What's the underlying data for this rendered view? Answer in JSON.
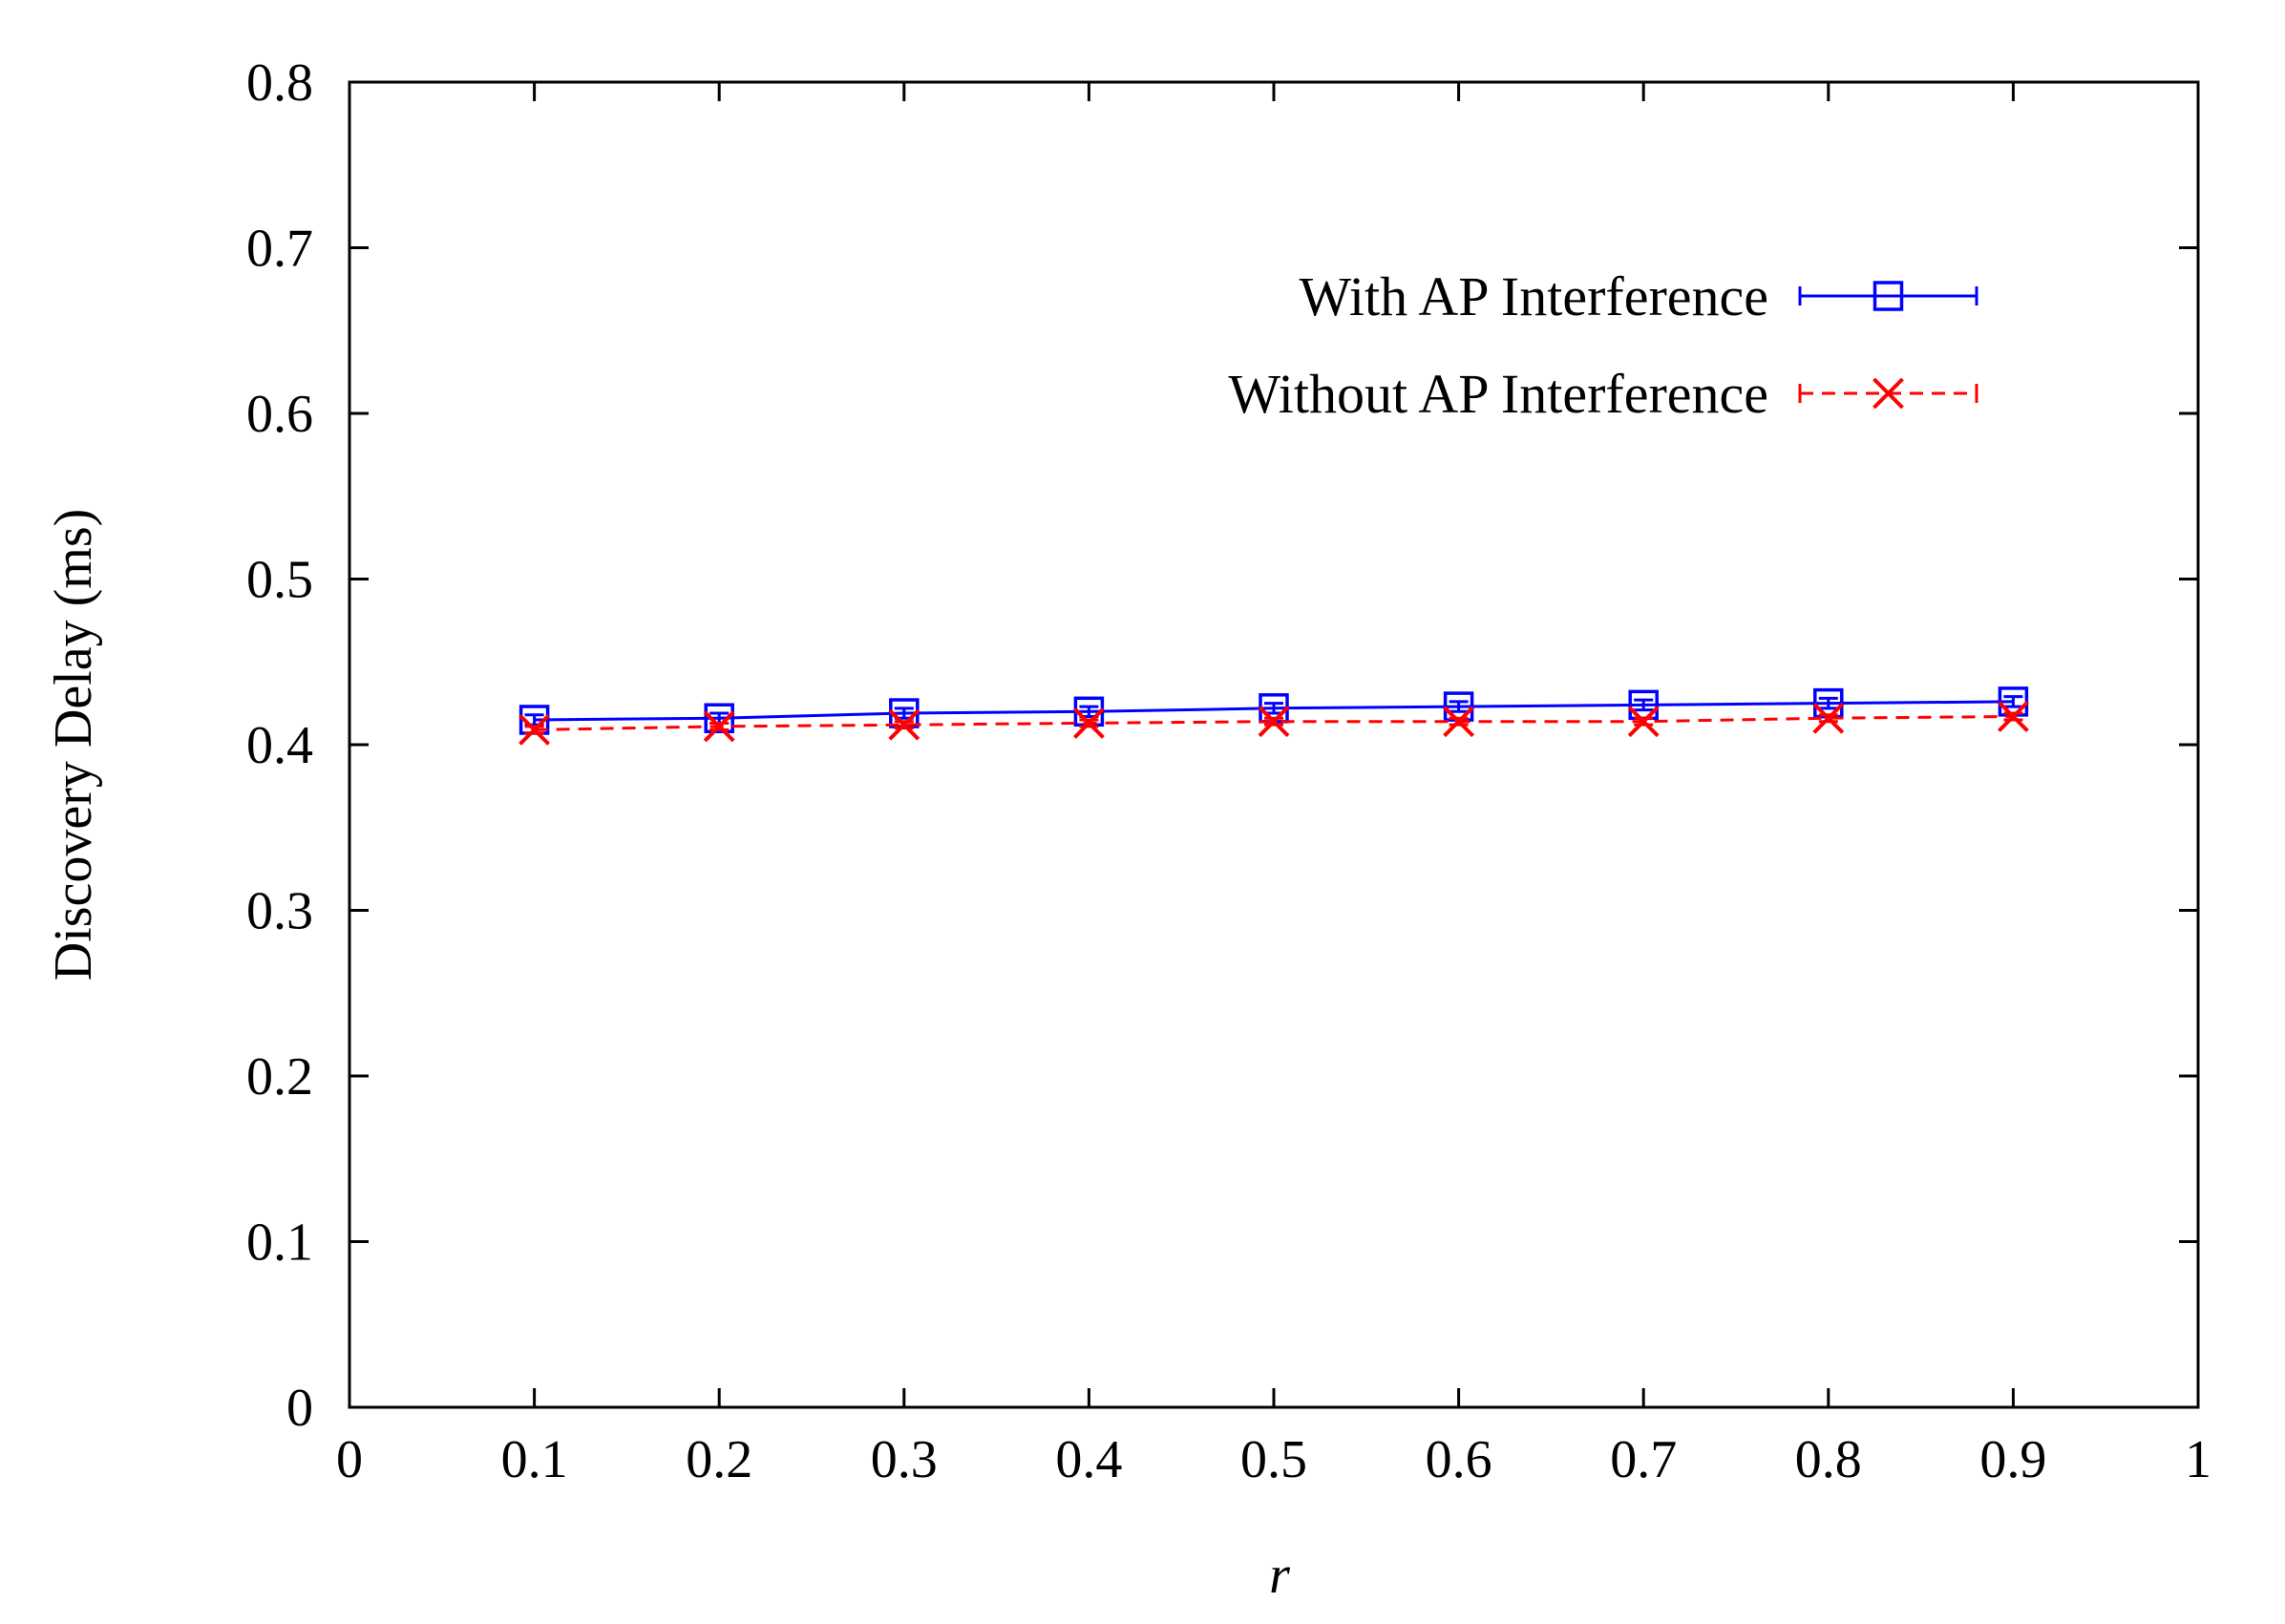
{
  "chart_data": {
    "type": "line",
    "title": "",
    "xlabel": "r",
    "ylabel": "Discovery Delay (ms)",
    "xlim": [
      0,
      1
    ],
    "ylim": [
      0,
      0.8
    ],
    "x_ticks": [
      0,
      0.1,
      0.2,
      0.3,
      0.4,
      0.5,
      0.6,
      0.7,
      0.8,
      0.9,
      1
    ],
    "x_tick_labels": [
      "0",
      "0.1",
      "0.2",
      "0.3",
      "0.4",
      "0.5",
      "0.6",
      "0.7",
      "0.8",
      "0.9",
      "1"
    ],
    "y_ticks": [
      0,
      0.1,
      0.2,
      0.3,
      0.4,
      0.5,
      0.6,
      0.7,
      0.8
    ],
    "y_tick_labels": [
      "0",
      "0.1",
      "0.2",
      "0.3",
      "0.4",
      "0.5",
      "0.6",
      "0.7",
      "0.8"
    ],
    "grid": false,
    "legend_position": "top-right",
    "x": [
      0.1,
      0.2,
      0.3,
      0.4,
      0.5,
      0.6,
      0.7,
      0.8,
      0.9
    ],
    "series": [
      {
        "name": "With AP Interference",
        "color": "#0000ff",
        "marker": "square",
        "line_style": "solid",
        "values": [
          0.415,
          0.416,
          0.419,
          0.42,
          0.422,
          0.423,
          0.424,
          0.425,
          0.426
        ],
        "error": [
          0.003,
          0.003,
          0.003,
          0.003,
          0.003,
          0.003,
          0.003,
          0.003,
          0.003
        ]
      },
      {
        "name": "Without AP Interference",
        "color": "#ff0000",
        "marker": "x",
        "line_style": "dashed",
        "values": [
          0.409,
          0.411,
          0.412,
          0.413,
          0.414,
          0.414,
          0.414,
          0.416,
          0.417
        ],
        "error": [
          0.002,
          0.002,
          0.002,
          0.002,
          0.002,
          0.002,
          0.002,
          0.002,
          0.002
        ]
      }
    ]
  }
}
